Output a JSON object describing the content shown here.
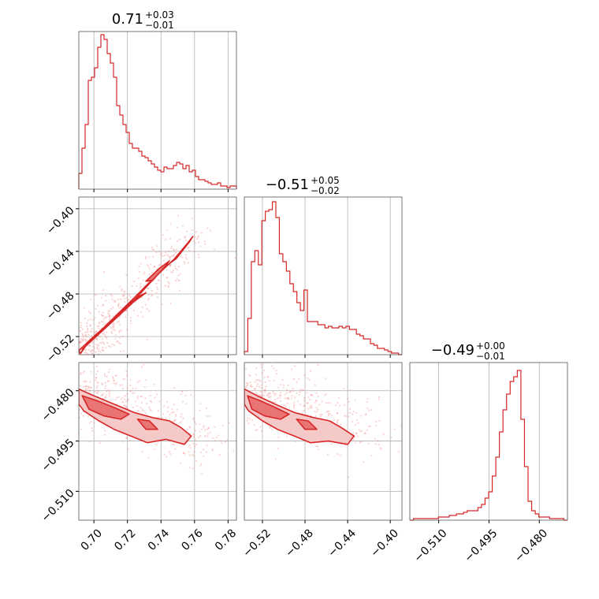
{
  "chart_data": {
    "type": "corner",
    "color": "#d62728",
    "parameters": [
      {
        "title": {
          "main": "0.71",
          "sup": "+0.03",
          "sub": "−0.01"
        },
        "range": [
          0.691,
          0.785
        ],
        "ticks": [
          0.7,
          0.72,
          0.74,
          0.76,
          0.78
        ],
        "tick_labels": [
          "0.70",
          "0.72",
          "0.74",
          "0.76",
          "0.78"
        ],
        "hist": [
          0.1,
          0.26,
          0.41,
          0.69,
          0.71,
          0.77,
          0.9,
          0.98,
          0.95,
          0.86,
          0.8,
          0.71,
          0.53,
          0.47,
          0.41,
          0.36,
          0.29,
          0.26,
          0.26,
          0.24,
          0.21,
          0.2,
          0.18,
          0.16,
          0.14,
          0.12,
          0.11,
          0.14,
          0.13,
          0.13,
          0.15,
          0.17,
          0.16,
          0.13,
          0.15,
          0.11,
          0.12,
          0.08,
          0.06,
          0.06,
          0.05,
          0.04,
          0.03,
          0.03,
          0.04,
          0.02,
          0.02,
          0.01,
          0.02,
          0.02
        ]
      },
      {
        "title": {
          "main": "−0.51",
          "sup": "+0.05",
          "sub": "−0.02"
        },
        "range": [
          -0.537,
          -0.389
        ],
        "ticks": [
          -0.52,
          -0.48,
          -0.44,
          -0.4
        ],
        "tick_labels": [
          "−0.52",
          "−0.48",
          "−0.44",
          "−0.40"
        ],
        "hist": [
          0.02,
          0.23,
          0.59,
          0.66,
          0.57,
          0.85,
          0.91,
          0.92,
          0.97,
          0.87,
          0.64,
          0.59,
          0.53,
          0.45,
          0.4,
          0.33,
          0.28,
          0.41,
          0.21,
          0.21,
          0.21,
          0.19,
          0.19,
          0.17,
          0.18,
          0.17,
          0.17,
          0.18,
          0.17,
          0.18,
          0.16,
          0.16,
          0.13,
          0.12,
          0.1,
          0.1,
          0.07,
          0.06,
          0.04,
          0.04,
          0.03,
          0.02,
          0.01,
          0.01,
          0.0
        ]
      },
      {
        "title": {
          "main": "−0.49",
          "sup": "+0.00",
          "sub": "−0.01"
        },
        "range": [
          -0.5186,
          -0.4716
        ],
        "ticks": [
          -0.51,
          -0.495,
          -0.48
        ],
        "tick_labels": [
          "−0.510",
          "−0.495",
          "−0.480"
        ],
        "hist": [
          0.0,
          0.01,
          0.01,
          0.01,
          0.01,
          0.01,
          0.01,
          0.01,
          0.02,
          0.02,
          0.02,
          0.03,
          0.03,
          0.04,
          0.04,
          0.05,
          0.06,
          0.06,
          0.06,
          0.08,
          0.1,
          0.14,
          0.18,
          0.28,
          0.4,
          0.56,
          0.7,
          0.8,
          0.88,
          0.91,
          0.95,
          0.64,
          0.34,
          0.12,
          0.06,
          0.04,
          0.02,
          0.02,
          0.02,
          0.01,
          0.01,
          0.01,
          0.01,
          0.0
        ]
      }
    ],
    "pairs": [
      {
        "x_param": 0,
        "y_param": 1,
        "trend": {
          "x0": 0.691,
          "y0": -0.535,
          "x1": 0.76,
          "y1": -0.425
        },
        "contours_outer": [
          [
            [
              0.691,
              -0.533
            ],
            [
              0.7,
              -0.52
            ],
            [
              0.712,
              -0.503
            ],
            [
              0.725,
              -0.484
            ],
            [
              0.738,
              -0.462
            ],
            [
              0.748,
              -0.447
            ],
            [
              0.756,
              -0.432
            ],
            [
              0.759,
              -0.426
            ],
            [
              0.757,
              -0.431
            ],
            [
              0.749,
              -0.447
            ],
            [
              0.741,
              -0.456
            ],
            [
              0.735,
              -0.466
            ],
            [
              0.727,
              -0.479
            ],
            [
              0.716,
              -0.496
            ],
            [
              0.705,
              -0.513
            ],
            [
              0.696,
              -0.527
            ],
            [
              0.692,
              -0.536
            ]
          ]
        ],
        "contours_inner": [
          [
            [
              0.693,
              -0.532
            ],
            [
              0.702,
              -0.519
            ],
            [
              0.713,
              -0.503
            ],
            [
              0.724,
              -0.487
            ],
            [
              0.731,
              -0.479
            ],
            [
              0.727,
              -0.482
            ],
            [
              0.716,
              -0.497
            ],
            [
              0.706,
              -0.512
            ],
            [
              0.697,
              -0.526
            ]
          ],
          [
            [
              0.731,
              -0.468
            ],
            [
              0.739,
              -0.456
            ],
            [
              0.745,
              -0.449
            ],
            [
              0.741,
              -0.457
            ],
            [
              0.735,
              -0.467
            ]
          ]
        ],
        "scatter_seed": 7,
        "scatter_count": 520,
        "scatter_spread": [
          0.012,
          0.01
        ]
      },
      {
        "x_param": 0,
        "y_param": 2,
        "trend": {
          "x0": 0.691,
          "y0": -0.48,
          "x1": 0.77,
          "y1": -0.495
        },
        "contours_outer": [
          [
            [
              0.691,
              -0.4795
            ],
            [
              0.7,
              -0.4815
            ],
            [
              0.712,
              -0.484
            ],
            [
              0.724,
              -0.4865
            ],
            [
              0.735,
              -0.488
            ],
            [
              0.745,
              -0.489
            ],
            [
              0.752,
              -0.491
            ],
            [
              0.758,
              -0.4935
            ],
            [
              0.754,
              -0.496
            ],
            [
              0.743,
              -0.4945
            ],
            [
              0.732,
              -0.4955
            ],
            [
              0.722,
              -0.4935
            ],
            [
              0.712,
              -0.4915
            ],
            [
              0.703,
              -0.489
            ],
            [
              0.694,
              -0.486
            ],
            [
              0.691,
              -0.484
            ]
          ]
        ],
        "contours_inner": [
          [
            [
              0.693,
              -0.4815
            ],
            [
              0.702,
              -0.483
            ],
            [
              0.712,
              -0.485
            ],
            [
              0.721,
              -0.487
            ],
            [
              0.716,
              -0.4885
            ],
            [
              0.706,
              -0.4875
            ],
            [
              0.697,
              -0.4855
            ]
          ],
          [
            [
              0.726,
              -0.4885
            ],
            [
              0.733,
              -0.489
            ],
            [
              0.738,
              -0.4915
            ],
            [
              0.731,
              -0.4915
            ]
          ]
        ],
        "scatter_seed": 11,
        "scatter_count": 520,
        "scatter_spread": [
          0.014,
          0.005
        ]
      },
      {
        "x_param": 1,
        "y_param": 2,
        "trend": {
          "x0": -0.537,
          "y0": -0.48,
          "x1": -0.41,
          "y1": -0.495
        },
        "contours_outer": [
          [
            [
              -0.537,
              -0.4795
            ],
            [
              -0.525,
              -0.4815
            ],
            [
              -0.508,
              -0.484
            ],
            [
              -0.49,
              -0.4865
            ],
            [
              -0.472,
              -0.488
            ],
            [
              -0.457,
              -0.489
            ],
            [
              -0.446,
              -0.491
            ],
            [
              -0.434,
              -0.4935
            ],
            [
              -0.44,
              -0.496
            ],
            [
              -0.458,
              -0.495
            ],
            [
              -0.475,
              -0.4955
            ],
            [
              -0.49,
              -0.4935
            ],
            [
              -0.506,
              -0.4915
            ],
            [
              -0.52,
              -0.489
            ],
            [
              -0.533,
              -0.486
            ],
            [
              -0.537,
              -0.484
            ]
          ]
        ],
        "contours_inner": [
          [
            [
              -0.534,
              -0.4815
            ],
            [
              -0.522,
              -0.483
            ],
            [
              -0.508,
              -0.485
            ],
            [
              -0.495,
              -0.487
            ],
            [
              -0.503,
              -0.4885
            ],
            [
              -0.518,
              -0.4875
            ],
            [
              -0.53,
              -0.4855
            ]
          ],
          [
            [
              -0.488,
              -0.4885
            ],
            [
              -0.477,
              -0.489
            ],
            [
              -0.469,
              -0.4915
            ],
            [
              -0.48,
              -0.4915
            ]
          ]
        ],
        "scatter_seed": 23,
        "scatter_count": 520,
        "scatter_spread": [
          0.02,
          0.005
        ]
      }
    ]
  }
}
